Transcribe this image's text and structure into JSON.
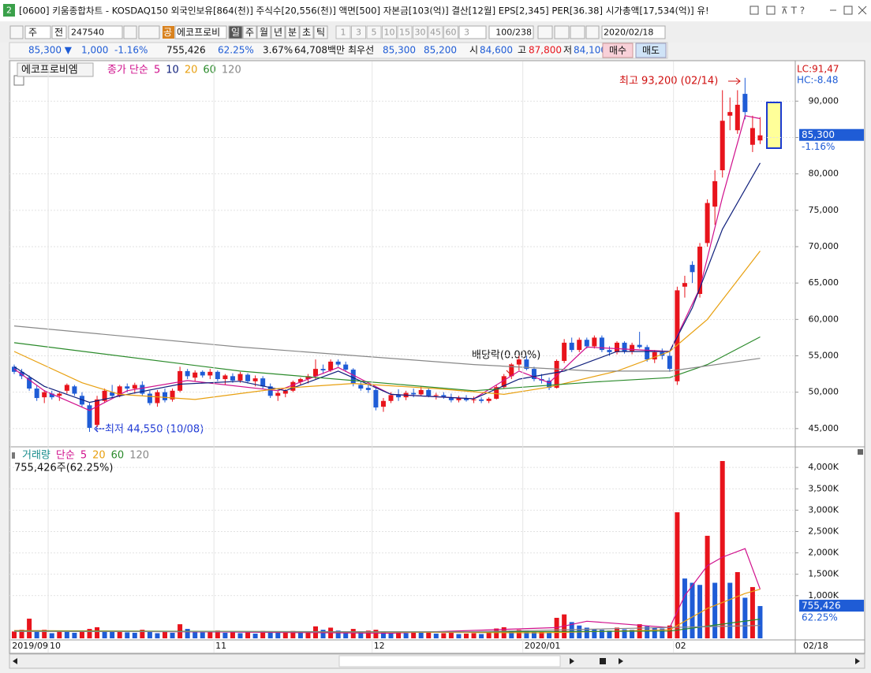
{
  "window": {
    "badge": "2",
    "title": "[0600] 키움종합차트 - KOSDAQ150 외국인보유[864(천)] 주식수[20,556(천)] 액면[500] 자본금[103(억)] 결산[12월] EPS[2,345] PER[36.38] 시가총액[17,534(억)] 유!"
  },
  "toolbar": {
    "kind": "주",
    "compare": "전",
    "code": "247540",
    "gong": "공",
    "name": "에코프로비",
    "periods": [
      "일",
      "주",
      "월",
      "년",
      "분",
      "초",
      "틱"
    ],
    "numbers": [
      "1",
      "3",
      "5",
      "10",
      "15",
      "30",
      "45",
      "60"
    ],
    "count": "3",
    "range": "100/238",
    "date": "2020/02/18"
  },
  "quote": {
    "price": "85,300 ▼",
    "change": "1,000",
    "rate": "-1.16%",
    "volume": "755,426",
    "vol_ratio": "62.25%",
    "turnover": "3.67%",
    "amount": "64,708백만",
    "best_label": "최우선",
    "ask": "85,300",
    "bid": "85,200",
    "open_label": "시",
    "open": "84,600",
    "high_label": "고",
    "high": "87,800",
    "low_label": "저",
    "low": "84,100",
    "buy": "매수",
    "sell": "매도"
  },
  "status": {
    "date": "02/18"
  },
  "chart_data": [
    {
      "type": "candlestick",
      "pane_label": "에코프로비엠",
      "legend_title": "종가 단순",
      "up_color": "#e8141c",
      "down_color": "#1f5cd6",
      "grid": true,
      "ylim": [
        42600,
        95450
      ],
      "yticks": [
        {
          "value": 45000,
          "label": "45,000"
        },
        {
          "value": 50000,
          "label": "50,000"
        },
        {
          "value": 55000,
          "label": "55,000"
        },
        {
          "value": 60000,
          "label": "60,000"
        },
        {
          "value": 65000,
          "label": "65,000"
        },
        {
          "value": 70000,
          "label": "70,000"
        },
        {
          "value": 75000,
          "label": "75,000"
        },
        {
          "value": 80000,
          "label": "80,000"
        },
        {
          "value": 85000,
          "label": "85,000"
        },
        {
          "value": 90000,
          "label": "90,000"
        }
      ],
      "open": [
        53500,
        52800,
        52000,
        50500,
        49300,
        49800,
        49500,
        50200,
        50800,
        49500,
        48200,
        45500,
        48800,
        50000,
        49500,
        50800,
        50500,
        51000,
        49800,
        48500,
        50000,
        49000,
        50200,
        52900,
        52000,
        52800,
        52300,
        52800,
        51800,
        52200,
        51600,
        52400,
        51500,
        51900,
        50800,
        49500,
        49800,
        50200,
        51400,
        51800,
        52200,
        53200,
        53000,
        54200,
        53800,
        53100,
        51000,
        50600,
        50300,
        48000,
        48800,
        49600,
        49300,
        49900,
        49700,
        50300,
        49500,
        49600,
        49300,
        48900,
        49200,
        48900,
        49000,
        48800,
        49100,
        50700,
        52200,
        53800,
        54500,
        53200,
        51800,
        51600,
        50600,
        54300,
        56800,
        55800,
        57200,
        56300,
        57500,
        55800,
        55500,
        56800,
        55600,
        56500,
        56200,
        54500,
        55500,
        55000,
        51500,
        64500,
        67500,
        63500,
        70500,
        75500,
        80500,
        88000,
        86000,
        91000,
        84000,
        84600
      ],
      "high": [
        53800,
        53200,
        52300,
        51000,
        50300,
        50200,
        50000,
        51200,
        51000,
        50000,
        48500,
        49500,
        50500,
        51000,
        51000,
        51200,
        51300,
        51500,
        50200,
        50300,
        50500,
        50500,
        53500,
        53200,
        53000,
        53000,
        53200,
        53000,
        52500,
        52600,
        52800,
        52600,
        52300,
        52200,
        51200,
        50200,
        50400,
        51600,
        52000,
        52500,
        54500,
        53800,
        54500,
        54500,
        54200,
        53300,
        51500,
        51200,
        50600,
        49200,
        50000,
        50400,
        50200,
        50500,
        50800,
        50600,
        49900,
        50000,
        49800,
        49500,
        49600,
        49400,
        49300,
        49300,
        51000,
        52500,
        54000,
        55000,
        55000,
        53500,
        52500,
        52000,
        54500,
        57300,
        57500,
        57500,
        57500,
        57800,
        57800,
        56300,
        57000,
        57000,
        56800,
        58300,
        56500,
        55800,
        56000,
        55500,
        64500,
        66000,
        68000,
        70500,
        76500,
        80500,
        91500,
        90500,
        91500,
        93200,
        88000,
        87800
      ],
      "low": [
        52500,
        51800,
        50200,
        48800,
        48500,
        49000,
        48800,
        49800,
        49500,
        48000,
        44550,
        45200,
        48500,
        49200,
        49300,
        50000,
        49800,
        49500,
        48200,
        48000,
        48600,
        48700,
        50000,
        51800,
        51500,
        52000,
        51800,
        51500,
        51000,
        51300,
        51300,
        51200,
        50800,
        50500,
        49200,
        48800,
        49300,
        50000,
        51000,
        51200,
        51800,
        52500,
        52800,
        53500,
        52800,
        50800,
        50200,
        49900,
        47500,
        47300,
        48500,
        48800,
        48900,
        49300,
        49500,
        49300,
        49000,
        49100,
        48600,
        48600,
        48700,
        48500,
        48500,
        48500,
        49000,
        50500,
        51800,
        53000,
        53000,
        51500,
        51200,
        50300,
        50500,
        54000,
        55500,
        55500,
        56000,
        56000,
        55500,
        55000,
        55200,
        55300,
        55200,
        56000,
        54200,
        54000,
        54500,
        52800,
        51000,
        63000,
        65000,
        63000,
        70000,
        73000,
        79500,
        86000,
        85500,
        87500,
        83000,
        84100
      ],
      "close": [
        52800,
        52200,
        50500,
        49200,
        50000,
        49300,
        49800,
        51000,
        49800,
        48300,
        45100,
        49000,
        50200,
        49500,
        50800,
        50500,
        51000,
        49800,
        48500,
        50000,
        48900,
        50200,
        52900,
        52200,
        52700,
        52300,
        52800,
        51800,
        52300,
        51600,
        52500,
        51500,
        51900,
        50800,
        49500,
        49900,
        50200,
        51400,
        51800,
        52200,
        53200,
        53000,
        54200,
        53800,
        53100,
        51200,
        50500,
        50300,
        47900,
        48800,
        49600,
        49300,
        49900,
        49700,
        50300,
        49500,
        49600,
        49300,
        48900,
        49200,
        48900,
        49000,
        48800,
        49100,
        50700,
        52200,
        53800,
        54500,
        53200,
        51800,
        51600,
        50600,
        54300,
        56800,
        55800,
        57200,
        56300,
        57500,
        55800,
        55500,
        56800,
        55600,
        56500,
        56200,
        54500,
        55500,
        55000,
        53200,
        64000,
        65000,
        66500,
        70000,
        76000,
        79000,
        87300,
        88500,
        89500,
        88500,
        86300,
        85300
      ],
      "series": [
        {
          "name": "5",
          "color": "#d0108c",
          "x": [
            0,
            4,
            10,
            15,
            23,
            35,
            43,
            50,
            61,
            67,
            71,
            76,
            87,
            91,
            94,
            97,
            99
          ],
          "values": [
            53200,
            50200,
            47500,
            50200,
            51600,
            50200,
            53400,
            49700,
            49100,
            52900,
            51300,
            56200,
            55600,
            64300,
            76800,
            88000,
            87600
          ]
        },
        {
          "name": "10",
          "color": "#10207c",
          "x": [
            0,
            4,
            10,
            15,
            22,
            30,
            36,
            43,
            50,
            61,
            67,
            73,
            80,
            87,
            90,
            94,
            99
          ],
          "values": [
            53500,
            50800,
            48600,
            49700,
            51100,
            51500,
            50200,
            52900,
            49700,
            49100,
            51800,
            52900,
            55600,
            55600,
            61600,
            72400,
            81500
          ]
        },
        {
          "name": "20",
          "color": "#e8a010",
          "x": [
            0,
            9,
            14,
            24,
            35,
            45,
            56,
            65,
            71,
            80,
            87,
            92,
            99
          ],
          "values": [
            55600,
            51300,
            49700,
            49000,
            50500,
            51200,
            50500,
            49700,
            50700,
            52900,
            55600,
            60000,
            69400
          ]
        },
        {
          "name": "60",
          "color": "#2a8a2a",
          "x": [
            0,
            30,
            45,
            61,
            77,
            87,
            92,
            99
          ],
          "values": [
            56800,
            52900,
            51600,
            50200,
            51400,
            52000,
            53800,
            57600
          ]
        },
        {
          "name": "120",
          "color": "#888888",
          "x": [
            0,
            30,
            61,
            77,
            87,
            99
          ],
          "values": [
            59100,
            56200,
            53800,
            52900,
            52900,
            54650
          ]
        }
      ],
      "high_label": "최고 93,200 (02/14)",
      "low_label": "최저 44,550 (10/08)",
      "event_label": "배당락(0.00%)",
      "lc_label": "LC:91,47",
      "hc_label": "HC:-8.48",
      "last_price_label": "85,300",
      "last_change_label": "-1.16%"
    },
    {
      "type": "bar",
      "title": "거래량",
      "legend_title": "단순",
      "title_color": "#168c8c",
      "up_color": "#e8141c",
      "down_color": "#1f5cd6",
      "grid": true,
      "categories": [
        "2019/09",
        null,
        null,
        null,
        null,
        "10",
        null,
        null,
        null,
        null,
        null,
        null,
        null,
        null,
        null,
        null,
        null,
        null,
        null,
        null,
        null,
        null,
        null,
        null,
        null,
        null,
        null,
        "11",
        null,
        null,
        null,
        null,
        null,
        null,
        null,
        null,
        null,
        null,
        null,
        null,
        null,
        null,
        null,
        null,
        null,
        null,
        null,
        null,
        "12",
        null,
        null,
        null,
        null,
        null,
        null,
        null,
        null,
        null,
        null,
        null,
        null,
        null,
        null,
        null,
        null,
        null,
        null,
        null,
        "2020/01",
        null,
        null,
        null,
        null,
        null,
        null,
        null,
        null,
        null,
        null,
        null,
        null,
        null,
        null,
        null,
        null,
        null,
        null,
        null,
        "02",
        null,
        null,
        null,
        null,
        null,
        null,
        null,
        null,
        null,
        null,
        null
      ],
      "values": [
        160000,
        200000,
        460000,
        150000,
        200000,
        120000,
        180000,
        150000,
        130000,
        160000,
        220000,
        260000,
        180000,
        150000,
        160000,
        140000,
        130000,
        200000,
        170000,
        120000,
        150000,
        130000,
        330000,
        220000,
        170000,
        140000,
        160000,
        180000,
        130000,
        150000,
        120000,
        140000,
        110000,
        170000,
        150000,
        130000,
        160000,
        170000,
        140000,
        150000,
        280000,
        200000,
        250000,
        180000,
        160000,
        220000,
        150000,
        180000,
        200000,
        160000,
        130000,
        150000,
        120000,
        140000,
        130000,
        160000,
        110000,
        120000,
        130000,
        100000,
        110000,
        120000,
        100000,
        130000,
        230000,
        260000,
        180000,
        200000,
        170000,
        150000,
        160000,
        140000,
        480000,
        560000,
        380000,
        300000,
        250000,
        220000,
        200000,
        180000,
        250000,
        210000,
        200000,
        330000,
        280000,
        250000,
        230000,
        300000,
        2950000,
        1400000,
        1300000,
        1250000,
        2400000,
        1300000,
        4150000,
        1300000,
        1550000,
        950000,
        1200000,
        755426
      ],
      "ylim": [
        0,
        4390000
      ],
      "yticks": [
        {
          "value": 1000000,
          "label": "1,000K"
        },
        {
          "value": 1500000,
          "label": "1,500K"
        },
        {
          "value": 2000000,
          "label": "2,000K"
        },
        {
          "value": 2500000,
          "label": "2,500K"
        },
        {
          "value": 3000000,
          "label": "3,000K"
        },
        {
          "value": 3500000,
          "label": "3,500K"
        },
        {
          "value": 4000000,
          "label": "4,000K"
        }
      ],
      "series": [
        {
          "name": "5",
          "color": "#d0108c",
          "x": [
            0,
            50,
            72,
            76,
            87,
            89,
            92,
            94,
            97,
            99
          ],
          "values": [
            180000,
            120000,
            250000,
            400000,
            250000,
            1000000,
            1700000,
            1900000,
            2100000,
            1150000
          ]
        },
        {
          "name": "20",
          "color": "#e8a010",
          "x": [
            0,
            70,
            87,
            92,
            97,
            99
          ],
          "values": [
            180000,
            130000,
            200000,
            700000,
            1050000,
            1150000
          ]
        },
        {
          "name": "60",
          "color": "#2a8a2a",
          "x": [
            0,
            60,
            87,
            99
          ],
          "values": [
            170000,
            150000,
            170000,
            450000
          ]
        },
        {
          "name": "120",
          "color": "#888888",
          "x": [
            0,
            60,
            99
          ],
          "values": [
            160000,
            150000,
            300000
          ]
        }
      ],
      "value_label": "755,426주(62.25%)",
      "last_volume_label": "755,426",
      "last_ratio_label": "62.25%"
    }
  ]
}
